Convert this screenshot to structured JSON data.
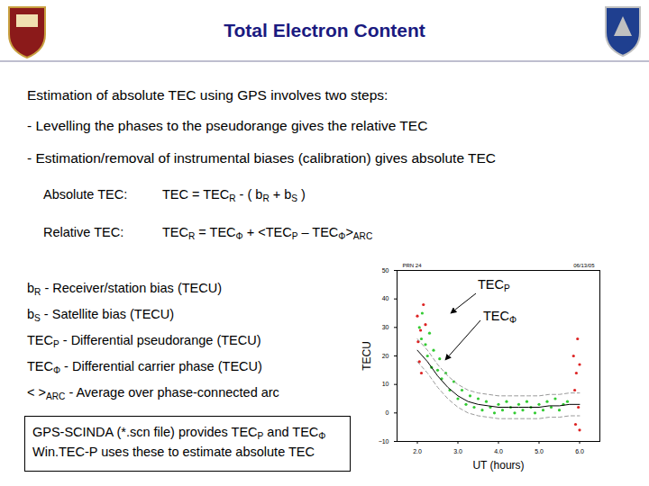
{
  "header": {
    "title": "Total Electron Content"
  },
  "intro": "Estimation of absolute TEC using GPS involves two steps:",
  "steps": [
    "- Levelling the phases to the pseudorange gives the relative TEC",
    "- Estimation/removal of instrumental biases (calibration) gives absolute TEC"
  ],
  "equations": [
    {
      "label": "Absolute TEC:",
      "formula": [
        "TEC = TEC",
        {
          "sub": "R"
        },
        " - ( b",
        {
          "sub": "R"
        },
        " + b",
        {
          "sub": "S"
        },
        " )"
      ]
    },
    {
      "label": "Relative TEC:",
      "formula": [
        "TEC",
        {
          "sub": "R"
        },
        " = TEC",
        {
          "sub": "Φ"
        },
        " +  <TEC",
        {
          "sub": "P"
        },
        " – TEC",
        {
          "sub": "Φ"
        },
        ">",
        {
          "sub": "ARC"
        }
      ]
    }
  ],
  "definitions": [
    [
      "b",
      {
        "sub": "R"
      },
      " - Receiver/station bias (TECU)"
    ],
    [
      "b",
      {
        "sub": "S"
      },
      " - Satellite bias (TECU)"
    ],
    [
      "TEC",
      {
        "sub": "P"
      },
      " - Differential pseudorange (TECU)"
    ],
    [
      "TEC",
      {
        "sub": "Φ"
      },
      " - Differential carrier phase (TECU)"
    ],
    [
      "< >",
      {
        "sub": "ARC"
      },
      " - Average over phase-connected arc"
    ]
  ],
  "box": [
    [
      "GPS-SCINDA (*.scn file) provides TEC",
      {
        "sub": "P"
      },
      " and TEC",
      {
        "sub": "Φ"
      }
    ],
    [
      "Win.TEC-P uses these to estimate absolute TEC"
    ]
  ],
  "chart_data": {
    "type": "scatter",
    "title": "PRN 24",
    "subtitle": "06/13/05",
    "xlabel": "UT (hours)",
    "ylabel": "TECU",
    "xlim": [
      1.5,
      6.5
    ],
    "xticks": [
      2,
      3,
      4,
      5,
      6
    ],
    "ylim": [
      -10,
      50
    ],
    "yticks": [
      -10,
      0,
      10,
      20,
      30,
      40,
      50
    ],
    "annotations": [
      [
        "TEC",
        {
          "sub": "P"
        }
      ],
      [
        "TEC",
        {
          "sub": "Φ"
        }
      ]
    ],
    "series": [
      {
        "type": "scatter",
        "marker": "circle",
        "color": "#33cc33",
        "x": [
          2.05,
          2.1,
          2.12,
          2.2,
          2.25,
          2.3,
          2.35,
          2.4,
          2.5,
          2.55,
          2.6,
          2.7,
          2.8,
          2.9,
          3.0,
          3.1,
          3.2,
          3.3,
          3.4,
          3.5,
          3.6,
          3.7,
          3.8,
          3.9,
          4.0,
          4.1,
          4.2,
          4.3,
          4.4,
          4.5,
          4.6,
          4.7,
          4.8,
          4.9,
          5.0,
          5.1,
          5.2,
          5.3,
          5.4,
          5.5,
          5.6,
          5.7
        ],
        "values": [
          30,
          26,
          35,
          24,
          20,
          28,
          16,
          22,
          15,
          19,
          12,
          14,
          8,
          11,
          5,
          8,
          3,
          6,
          2,
          5,
          1,
          4,
          2,
          0,
          3,
          1,
          4,
          2,
          0,
          3,
          1,
          4,
          2,
          0,
          3,
          1,
          4,
          2,
          5,
          1,
          3,
          4
        ]
      },
      {
        "type": "scatter",
        "marker": "circle",
        "color": "#dd2222",
        "x": [
          2.0,
          2.02,
          2.05,
          2.08,
          2.1,
          2.15,
          2.2,
          5.85,
          5.88,
          5.9,
          5.92,
          5.95,
          5.97,
          6.0,
          6.0
        ],
        "values": [
          34,
          25,
          18,
          29,
          14,
          38,
          31,
          20,
          8,
          -4,
          14,
          26,
          2,
          17,
          -6
        ]
      },
      {
        "type": "line",
        "line_style": "dashed",
        "color": "#999999",
        "x": [
          2.0,
          2.25,
          2.5,
          2.75,
          3.0,
          3.25,
          3.5,
          3.75,
          4.0,
          4.25,
          4.5,
          4.75,
          5.0,
          5.25,
          5.5,
          5.75,
          6.0
        ],
        "values": [
          26,
          22,
          17,
          13,
          10,
          8,
          7,
          6.5,
          6,
          6,
          6,
          6,
          6,
          6.5,
          6.5,
          7,
          7
        ]
      },
      {
        "type": "line",
        "line_style": "dashed",
        "color": "#999999",
        "x": [
          2.0,
          2.25,
          2.5,
          2.75,
          3.0,
          3.25,
          3.5,
          3.75,
          4.0,
          4.25,
          4.5,
          4.75,
          5.0,
          5.25,
          5.5,
          5.75,
          6.0
        ],
        "values": [
          18,
          14,
          9,
          5,
          2,
          0,
          -1,
          -1.5,
          -2,
          -2,
          -2,
          -2,
          -2,
          -1.5,
          -1.5,
          -1,
          -1
        ]
      },
      {
        "type": "line",
        "line_style": "solid",
        "color": "#000000",
        "x": [
          2.0,
          2.25,
          2.5,
          2.75,
          3.0,
          3.25,
          3.5,
          3.75,
          4.0,
          4.25,
          4.5,
          4.75,
          5.0,
          5.25,
          5.5,
          5.75,
          6.0
        ],
        "values": [
          22,
          18,
          13,
          9,
          6,
          4,
          3,
          2.5,
          2,
          2,
          2,
          2,
          2,
          2.5,
          2.5,
          3,
          3
        ]
      }
    ]
  }
}
